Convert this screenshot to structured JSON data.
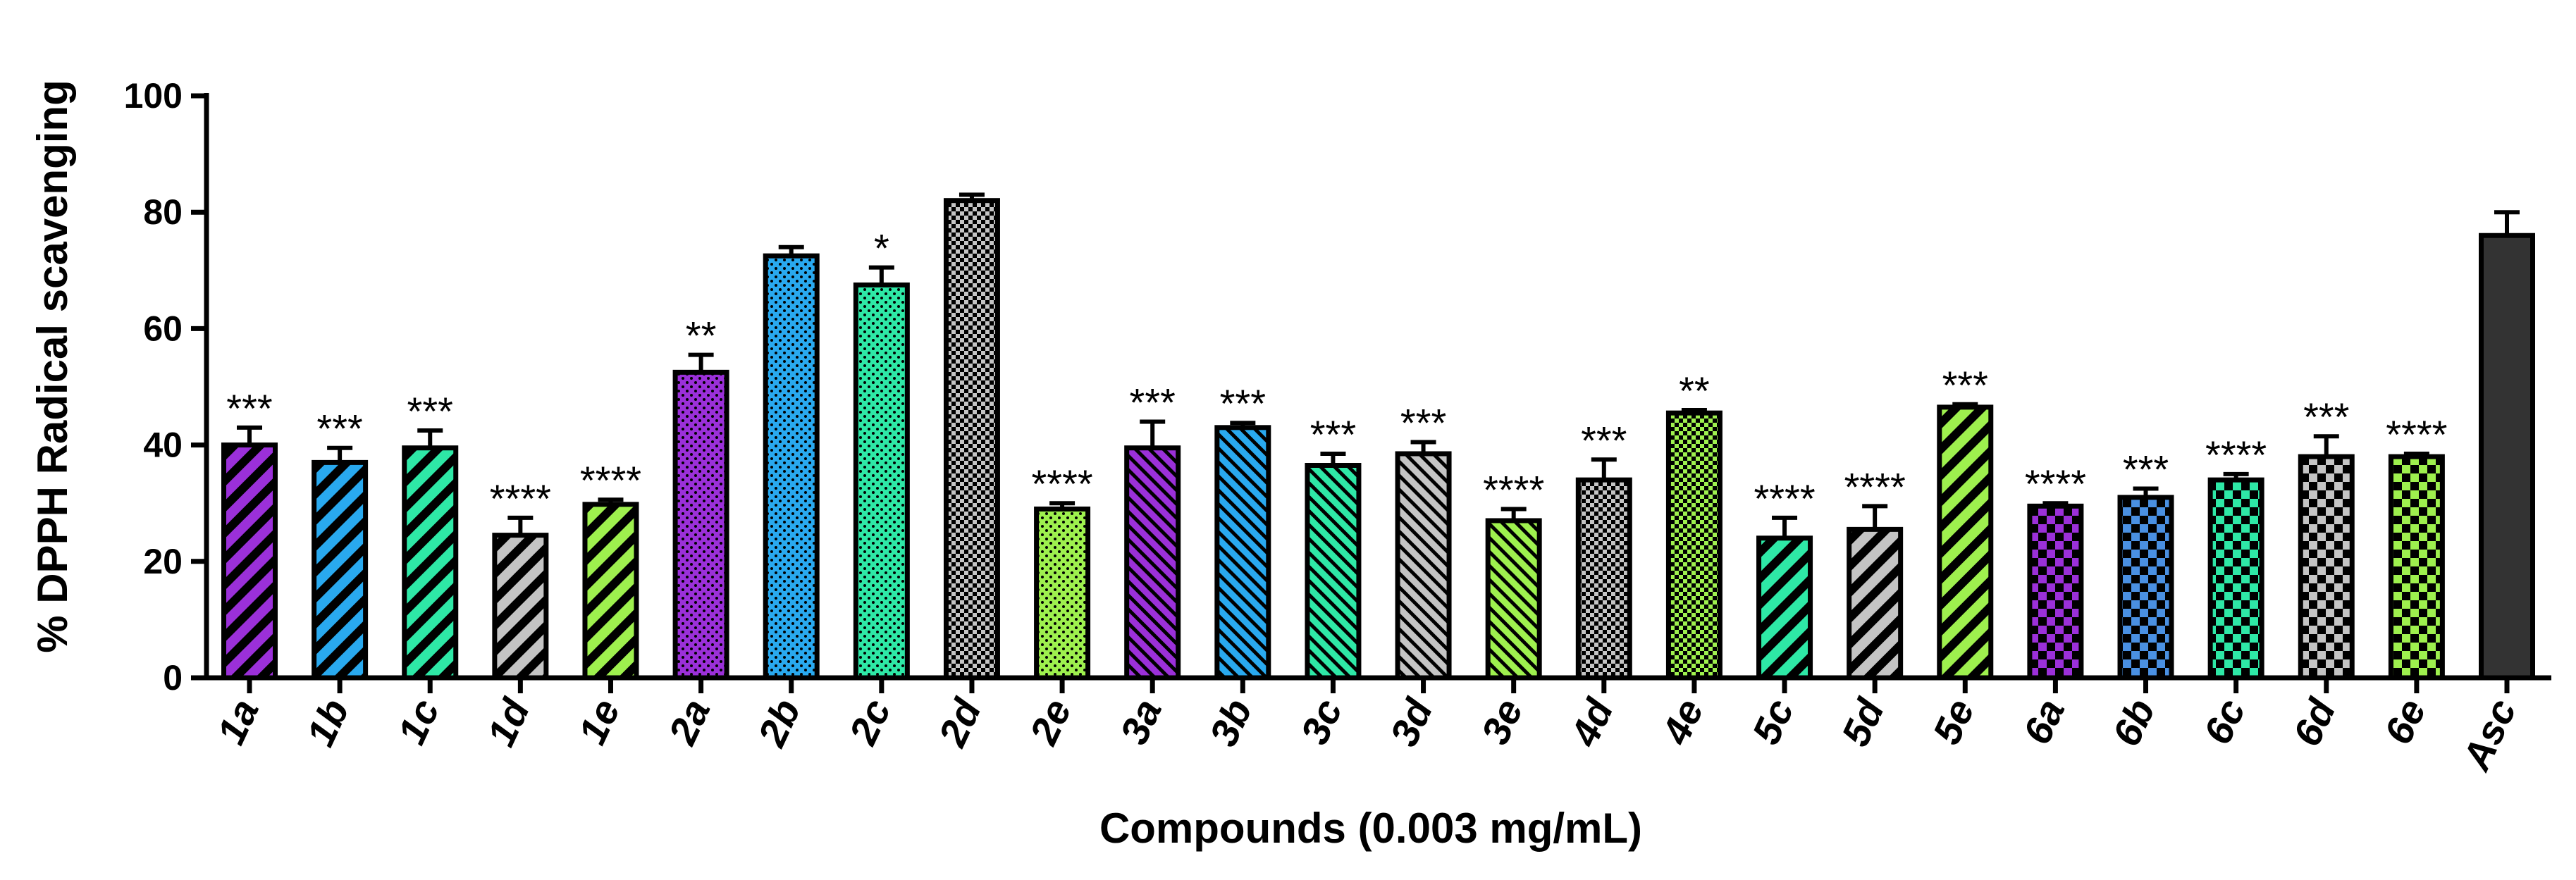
{
  "chart_data": {
    "type": "bar",
    "title": "",
    "xlabel": "Compounds (0.003 mg/mL)",
    "ylabel": "% DPPH Radical scavenging",
    "ylim": [
      0,
      100
    ],
    "yticks": [
      0,
      20,
      40,
      60,
      80,
      100
    ],
    "categories": [
      "1a",
      "1b",
      "1c",
      "1d",
      "1e",
      "2a",
      "2b",
      "2c",
      "2d",
      "2e",
      "3a",
      "3b",
      "3c",
      "3d",
      "3e",
      "4d",
      "4e",
      "5c",
      "5d",
      "5e",
      "6a",
      "6b",
      "6c",
      "6d",
      "6e",
      "Asc"
    ],
    "values": [
      40,
      37,
      39.5,
      24.5,
      29.8,
      52.5,
      72.5,
      67.5,
      82,
      29,
      39.5,
      43,
      36.5,
      38.5,
      27,
      34,
      45.5,
      24,
      25.5,
      46.5,
      29.5,
      31,
      34,
      38,
      38,
      76
    ],
    "errors": [
      3,
      2.5,
      3,
      3,
      0.8,
      3,
      1.5,
      3,
      1,
      1,
      4.5,
      0.8,
      2,
      2,
      2,
      3.5,
      0.5,
      3.5,
      4,
      0.5,
      0.5,
      1.5,
      1,
      3.5,
      0.5,
      4
    ],
    "significance": [
      "***",
      "***",
      "***",
      "****",
      "****",
      "**",
      "",
      "*",
      "",
      "****",
      "***",
      "***",
      "***",
      "***",
      "****",
      "***",
      "**",
      "****",
      "****",
      "***",
      "****",
      "***",
      "****",
      "***",
      "****",
      ""
    ],
    "colors": [
      "#9b30d9",
      "#29a9ef",
      "#2ee8a6",
      "#c4c4c4",
      "#9ef04e",
      "#9b30d9",
      "#29a9ef",
      "#2ee8a6",
      "#c4c4c4",
      "#9ef04e",
      "#9b30d9",
      "#29a9ef",
      "#2ee8a6",
      "#c4c4c4",
      "#9ef04e",
      "#c4c4c4",
      "#9ef04e",
      "#2ee8a6",
      "#c4c4c4",
      "#9ef04e",
      "#9b30d9",
      "#4a90e2",
      "#2ee8a6",
      "#c4c4c4",
      "#9ef04e",
      "#333333"
    ],
    "patterns": [
      "stripe-wide",
      "stripe-wide",
      "stripe-wide",
      "stripe-wide",
      "stripe-wide",
      "dots",
      "dots",
      "dots",
      "checker-fine",
      "dots",
      "stripe-right",
      "stripe-right",
      "stripe-right",
      "stripe-right",
      "stripe-right",
      "checker-fine",
      "checker-fine",
      "stripe-wide",
      "stripe-wide",
      "stripe-wide",
      "checker",
      "checker",
      "checker",
      "checker",
      "checker",
      "solid"
    ],
    "grid": false,
    "legend": "none"
  }
}
